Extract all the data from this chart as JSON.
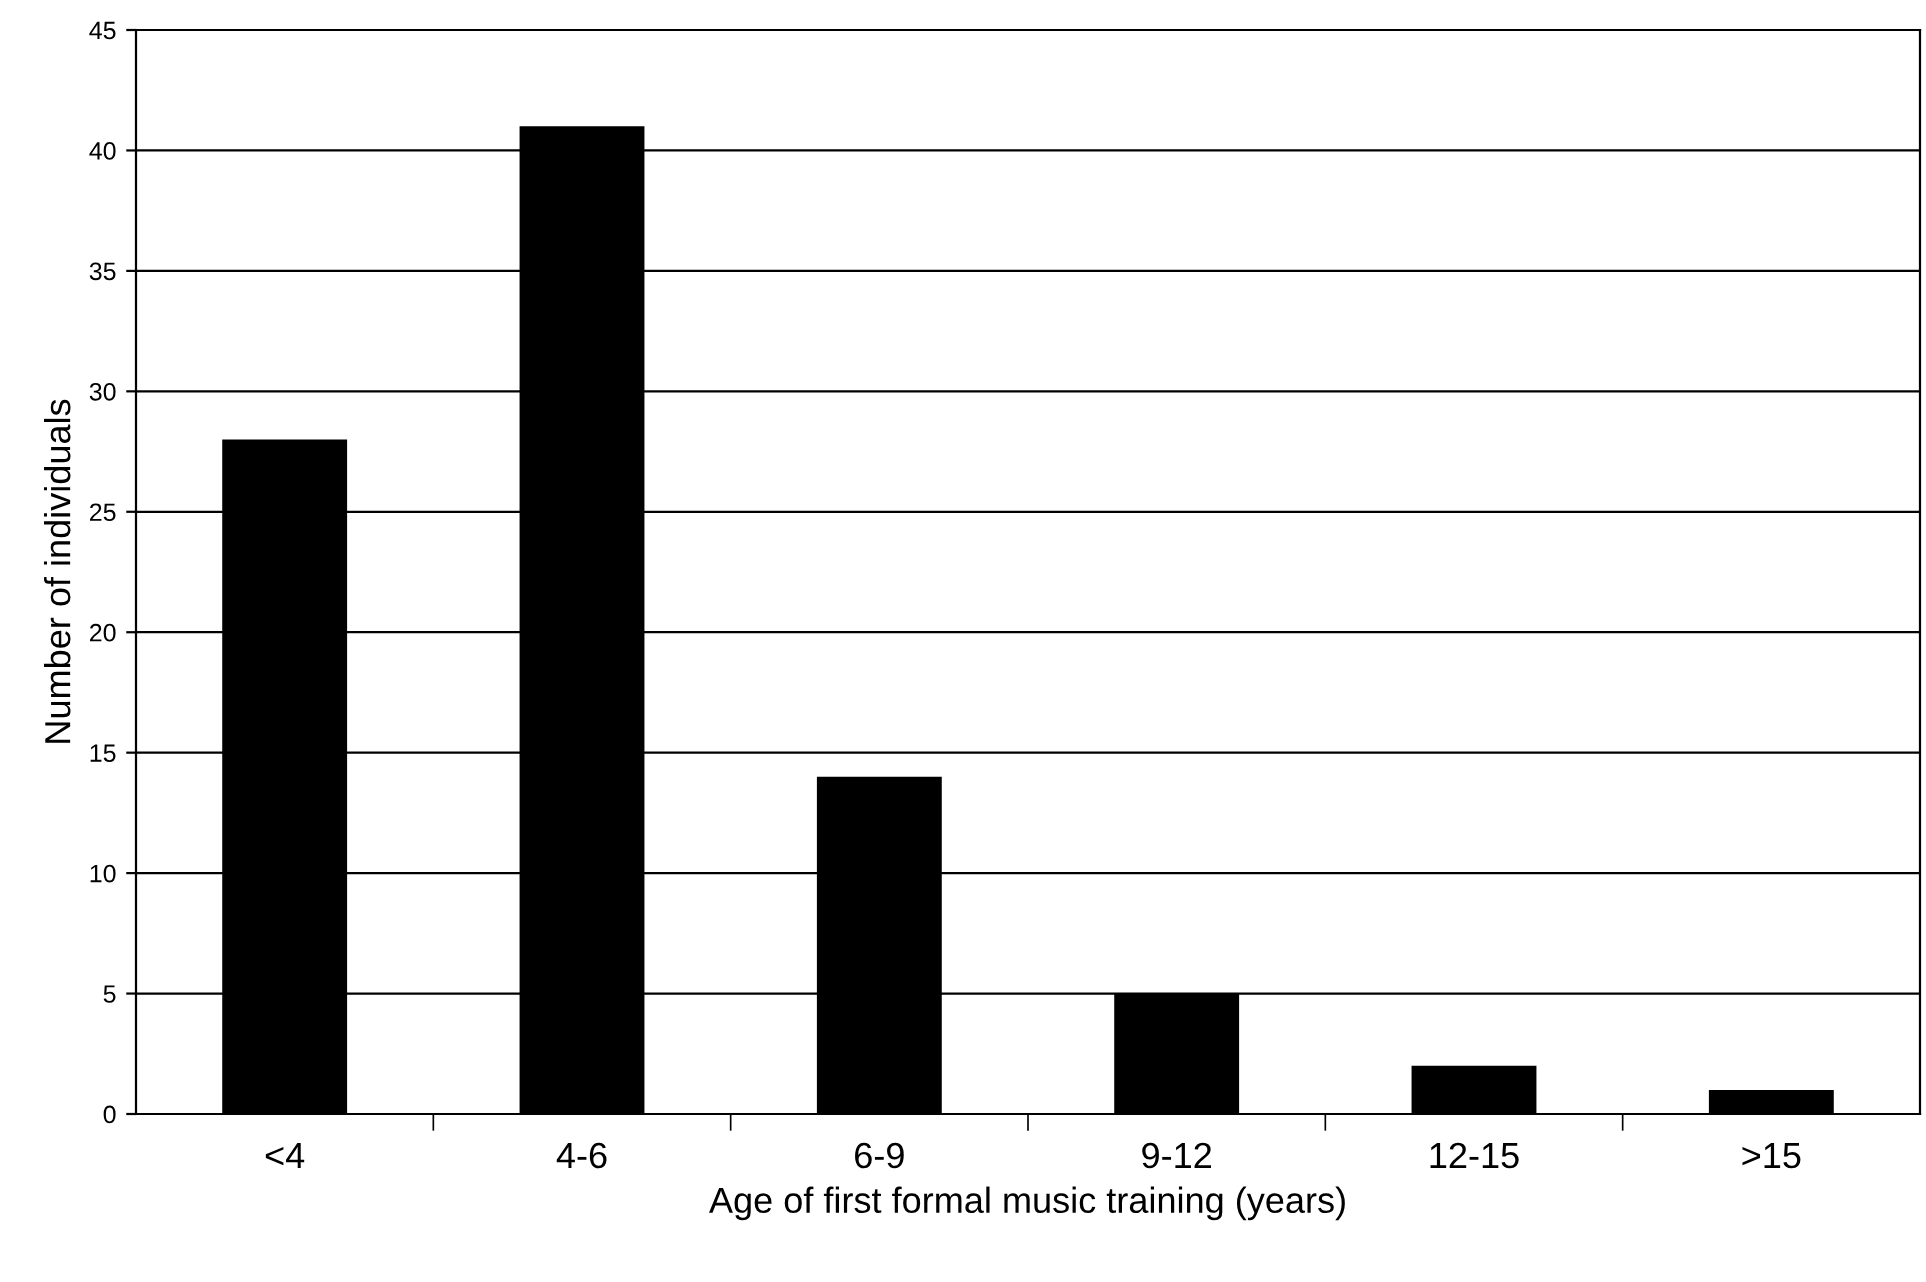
{
  "chart_data": {
    "type": "bar",
    "xlabel": "Age of first formal music training (years)",
    "ylabel": "Number of individuals",
    "categories": [
      "<4",
      "4-6",
      "6-9",
      "9-12",
      "12-15",
      ">15"
    ],
    "values": [
      28,
      41,
      14,
      5,
      2,
      1
    ],
    "color": "#000000",
    "ylim": [
      0,
      45
    ],
    "yticks": [
      0,
      5,
      10,
      15,
      20,
      25,
      30,
      35,
      40,
      45
    ],
    "grid": "y"
  }
}
